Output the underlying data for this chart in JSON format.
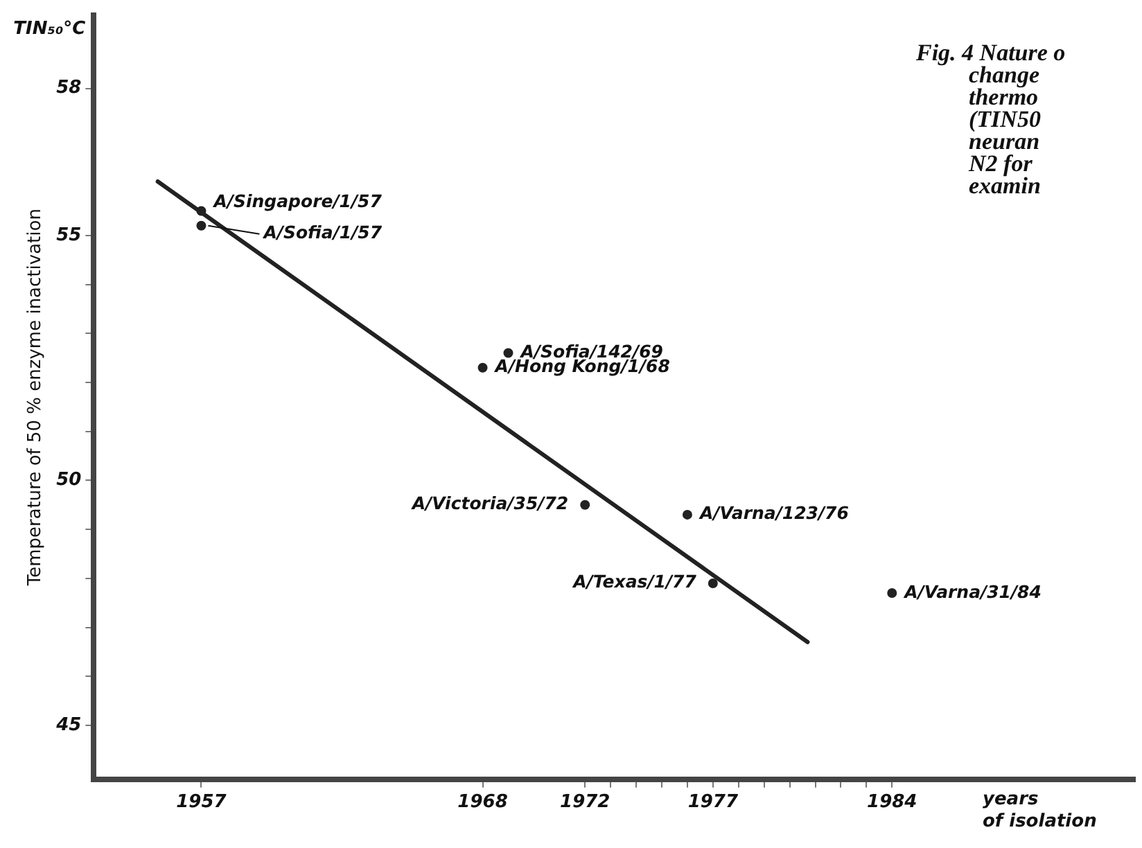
{
  "chart_data": {
    "type": "scatter",
    "ylabel": "Temperature of 50 % enzyme inactivation",
    "xlabel": "years of isolation",
    "series": [
      {
        "type": "scatter",
        "color": "#222222",
        "x": [
          1957,
          1957,
          1968,
          1969,
          1972,
          1976,
          1977,
          1984
        ],
        "values": [
          55.5,
          55.2,
          52.3,
          52.6,
          49.5,
          49.3,
          47.9,
          47.7
        ]
      },
      {
        "type": "line",
        "color": "#222222",
        "x": [
          1955.3,
          1980.7
        ],
        "values": [
          56.1,
          46.7
        ],
        "marker": "none"
      }
    ],
    "xlim": [
      1952.8,
      1993.5
    ],
    "ylim": [
      43.9,
      59.5
    ],
    "xticks": [
      1957,
      1968,
      1972,
      {
        "value": 1973,
        "label": null
      },
      {
        "value": 1974,
        "label": null
      },
      {
        "value": 1975,
        "label": null
      },
      {
        "value": 1976,
        "label": null
      },
      1977,
      {
        "value": 1978,
        "label": null
      },
      {
        "value": 1979,
        "label": null
      },
      {
        "value": 1980,
        "label": null
      },
      {
        "value": 1981,
        "label": null
      },
      {
        "value": 1982,
        "label": null
      },
      {
        "value": 1983,
        "label": null
      },
      1984
    ],
    "yticks": [
      45,
      {
        "value": 46,
        "label": null
      },
      {
        "value": 47,
        "label": null
      },
      {
        "value": 48,
        "label": null
      },
      {
        "value": 49,
        "label": null
      },
      50,
      {
        "value": 51,
        "label": null
      },
      {
        "value": 52,
        "label": null
      },
      {
        "value": 53,
        "label": null
      },
      {
        "value": 54,
        "label": null
      },
      55,
      58
    ],
    "grid": false,
    "legend": false,
    "marker": "circle",
    "annotations": [
      "TIN₅₀°C",
      "Fig. 4 Nature o\nchange\nthermo\n(TIN50\nneuran\nN2 for\nexamin",
      {
        "text": "A/Singapore/1/57",
        "x": 1957,
        "y": 55.5
      },
      {
        "text": "A/Sofia/1/57",
        "x": 1957,
        "y": 55.2
      },
      {
        "text": "A/Sofia/142/69",
        "x": 1969,
        "y": 52.6
      },
      {
        "text": "A/Hong Kong/1/68",
        "x": 1968,
        "y": 52.3
      },
      {
        "text": "A/Victoria/35/72",
        "x": 1972,
        "y": 49.5
      },
      {
        "text": "A/Varna/123/76",
        "x": 1976,
        "y": 49.3
      },
      {
        "text": "A/Texas/1/77",
        "x": 1977,
        "y": 47.9
      },
      {
        "text": "A/Varna/31/84",
        "x": 1984,
        "y": 47.7
      }
    ]
  }
}
